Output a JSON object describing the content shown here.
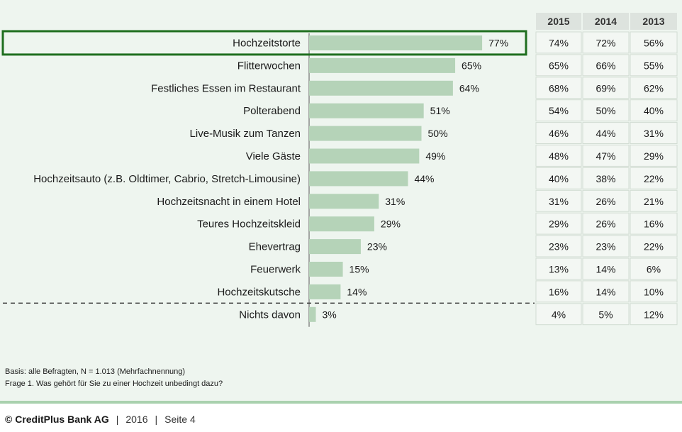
{
  "chart_data": {
    "type": "bar",
    "orientation": "horizontal",
    "categories": [
      "Hochzeitstorte",
      "Flitterwochen",
      "Festliches Essen im Restaurant",
      "Polterabend",
      "Live-Musik zum Tanzen",
      "Viele Gäste",
      "Hochzeitsauto (z.B. Oldtimer, Cabrio, Stretch-Limousine)",
      "Hochzeitsnacht in einem Hotel",
      "Teures Hochzeitskleid",
      "Ehevertrag",
      "Feuerwerk",
      "Hochzeitskutsche",
      "Nichts davon"
    ],
    "values": [
      77,
      65,
      64,
      51,
      50,
      49,
      44,
      31,
      29,
      23,
      15,
      14,
      3
    ],
    "value_labels": [
      "77%",
      "65%",
      "64%",
      "51%",
      "50%",
      "49%",
      "44%",
      "31%",
      "29%",
      "23%",
      "15%",
      "14%",
      "3%"
    ],
    "xlim": [
      0,
      100
    ],
    "highlighted_category": "Hochzeitstorte",
    "separator_before": "Nichts davon",
    "bar_color": "#b5d3b8",
    "highlight_color": "#1e6e1e",
    "comparison_table": {
      "columns": [
        "2015",
        "2014",
        "2013"
      ],
      "rows": [
        [
          "74%",
          "72%",
          "56%"
        ],
        [
          "65%",
          "66%",
          "55%"
        ],
        [
          "68%",
          "69%",
          "62%"
        ],
        [
          "54%",
          "50%",
          "40%"
        ],
        [
          "46%",
          "44%",
          "31%"
        ],
        [
          "48%",
          "47%",
          "29%"
        ],
        [
          "40%",
          "38%",
          "22%"
        ],
        [
          "31%",
          "26%",
          "21%"
        ],
        [
          "29%",
          "26%",
          "16%"
        ],
        [
          "23%",
          "23%",
          "22%"
        ],
        [
          "13%",
          "14%",
          "6%"
        ],
        [
          "16%",
          "14%",
          "10%"
        ],
        [
          "4%",
          "5%",
          "12%"
        ]
      ]
    }
  },
  "notes": {
    "basis": "Basis: alle Befragten, N = 1.013 (Mehrfachnennung)",
    "question": "Frage 1. Was gehört für Sie zu einer Hochzeit unbedingt dazu?"
  },
  "footer": {
    "company": "© CreditPlus Bank AG",
    "separator": "|",
    "year": "2016",
    "page": "Seite 4"
  },
  "colors": {
    "background": "#eef5ef",
    "footer_rule": "#a9d1ae"
  }
}
